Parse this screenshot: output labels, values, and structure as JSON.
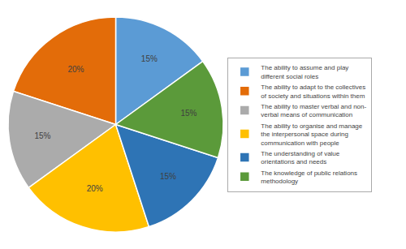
{
  "chart_data": {
    "type": "pie",
    "categories": [
      "The ability to assume and play\ndifferent social roles",
      "The ability to adapt to the collectives\nof society and situations within them",
      "The ability to master verbal and non-\nverbal means of communication",
      "The ability to organise and manage\nthe interpersonal space during\ncommunication with people",
      "The understanding of value\norientations and needs",
      "The knowledge of public relations\nmethodology"
    ],
    "values": [
      15,
      20,
      15,
      20,
      15,
      15
    ],
    "value_labels": [
      "15%",
      "20%",
      "15%",
      "20%",
      "15%",
      "15%"
    ],
    "colors": [
      "#5B9BD5",
      "#E36C09",
      "#ABABAB",
      "#FFC000",
      "#2E74B5",
      "#5B9A3A"
    ],
    "data_labels": true,
    "legend": "right"
  }
}
